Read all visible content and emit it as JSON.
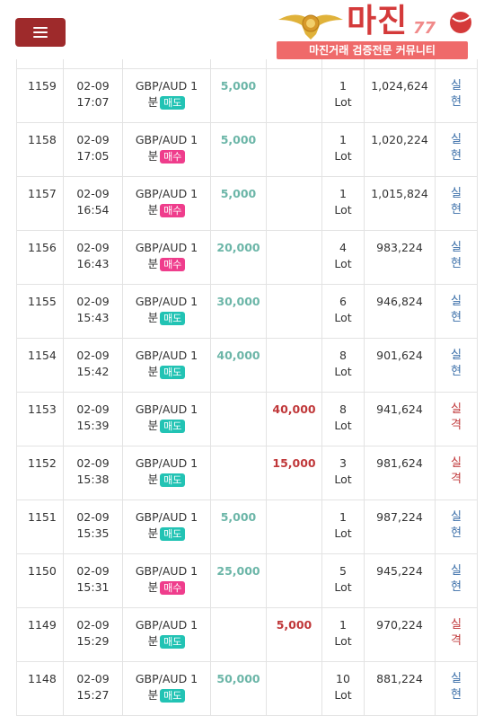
{
  "header": {
    "logo_text": "마진",
    "logo_num": "77",
    "logo_sub": "마진거래 검증전문 커뮤니티",
    "colors": {
      "menu_button": "#9e2a2b",
      "logo": "#d43a3a",
      "logo_sub_bg": "#ef6a6a"
    }
  },
  "colors": {
    "profit": "#6cb6a8",
    "loss": "#c0383a",
    "sell_badge": "#22c3b4",
    "buy_badge": "#ef3d8c",
    "result_real": "#3a6ea8",
    "result_loss": "#c0383a"
  },
  "rows": [
    {
      "id": "1159",
      "date": "02-09",
      "time": "17:07",
      "pair": "GBP/AUD 1",
      "unit": "분",
      "side": "매도",
      "side_type": "sell",
      "profit": "5,000",
      "loss": "",
      "lot": "1",
      "lot_unit": "Lot",
      "balance": "1,024,624",
      "result_1": "실",
      "result_2": "현",
      "result_type": "real"
    },
    {
      "id": "1158",
      "date": "02-09",
      "time": "17:05",
      "pair": "GBP/AUD 1",
      "unit": "분",
      "side": "매수",
      "side_type": "buy",
      "profit": "5,000",
      "loss": "",
      "lot": "1",
      "lot_unit": "Lot",
      "balance": "1,020,224",
      "result_1": "실",
      "result_2": "현",
      "result_type": "real"
    },
    {
      "id": "1157",
      "date": "02-09",
      "time": "16:54",
      "pair": "GBP/AUD 1",
      "unit": "분",
      "side": "매수",
      "side_type": "buy",
      "profit": "5,000",
      "loss": "",
      "lot": "1",
      "lot_unit": "Lot",
      "balance": "1,015,824",
      "result_1": "실",
      "result_2": "현",
      "result_type": "real"
    },
    {
      "id": "1156",
      "date": "02-09",
      "time": "16:43",
      "pair": "GBP/AUD 1",
      "unit": "분",
      "side": "매수",
      "side_type": "buy",
      "profit": "20,000",
      "loss": "",
      "lot": "4",
      "lot_unit": "Lot",
      "balance": "983,224",
      "result_1": "실",
      "result_2": "현",
      "result_type": "real"
    },
    {
      "id": "1155",
      "date": "02-09",
      "time": "15:43",
      "pair": "GBP/AUD 1",
      "unit": "분",
      "side": "매도",
      "side_type": "sell",
      "profit": "30,000",
      "loss": "",
      "lot": "6",
      "lot_unit": "Lot",
      "balance": "946,824",
      "result_1": "실",
      "result_2": "현",
      "result_type": "real"
    },
    {
      "id": "1154",
      "date": "02-09",
      "time": "15:42",
      "pair": "GBP/AUD 1",
      "unit": "분",
      "side": "매도",
      "side_type": "sell",
      "profit": "40,000",
      "loss": "",
      "lot": "8",
      "lot_unit": "Lot",
      "balance": "901,624",
      "result_1": "실",
      "result_2": "현",
      "result_type": "real"
    },
    {
      "id": "1153",
      "date": "02-09",
      "time": "15:39",
      "pair": "GBP/AUD 1",
      "unit": "분",
      "side": "매도",
      "side_type": "sell",
      "profit": "",
      "loss": "40,000",
      "lot": "8",
      "lot_unit": "Lot",
      "balance": "941,624",
      "result_1": "실",
      "result_2": "격",
      "result_type": "loss"
    },
    {
      "id": "1152",
      "date": "02-09",
      "time": "15:38",
      "pair": "GBP/AUD 1",
      "unit": "분",
      "side": "매도",
      "side_type": "sell",
      "profit": "",
      "loss": "15,000",
      "lot": "3",
      "lot_unit": "Lot",
      "balance": "981,624",
      "result_1": "실",
      "result_2": "격",
      "result_type": "loss"
    },
    {
      "id": "1151",
      "date": "02-09",
      "time": "15:35",
      "pair": "GBP/AUD 1",
      "unit": "분",
      "side": "매도",
      "side_type": "sell",
      "profit": "5,000",
      "loss": "",
      "lot": "1",
      "lot_unit": "Lot",
      "balance": "987,224",
      "result_1": "실",
      "result_2": "현",
      "result_type": "real"
    },
    {
      "id": "1150",
      "date": "02-09",
      "time": "15:31",
      "pair": "GBP/AUD 1",
      "unit": "분",
      "side": "매수",
      "side_type": "buy",
      "profit": "25,000",
      "loss": "",
      "lot": "5",
      "lot_unit": "Lot",
      "balance": "945,224",
      "result_1": "실",
      "result_2": "현",
      "result_type": "real"
    },
    {
      "id": "1149",
      "date": "02-09",
      "time": "15:29",
      "pair": "GBP/AUD 1",
      "unit": "분",
      "side": "매도",
      "side_type": "sell",
      "profit": "",
      "loss": "5,000",
      "lot": "1",
      "lot_unit": "Lot",
      "balance": "970,224",
      "result_1": "실",
      "result_2": "격",
      "result_type": "loss"
    },
    {
      "id": "1148",
      "date": "02-09",
      "time": "15:27",
      "pair": "GBP/AUD 1",
      "unit": "분",
      "side": "매도",
      "side_type": "sell",
      "profit": "50,000",
      "loss": "",
      "lot": "10",
      "lot_unit": "Lot",
      "balance": "881,224",
      "result_1": "실",
      "result_2": "현",
      "result_type": "real"
    }
  ]
}
